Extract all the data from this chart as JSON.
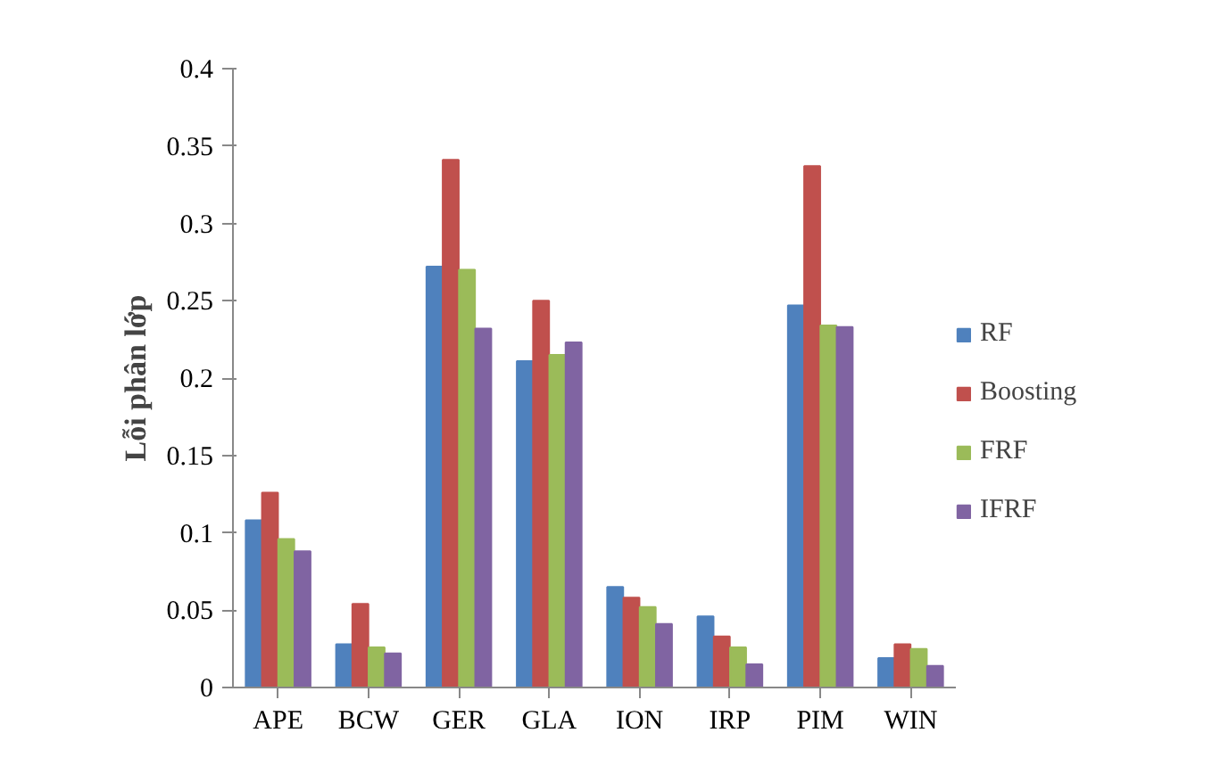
{
  "chart_data": {
    "type": "bar",
    "ylabel": "Lỗi phân lớp",
    "categories": [
      "APE",
      "BCW",
      "GER",
      "GLA",
      "ION",
      "IRP",
      "PIM",
      "WIN"
    ],
    "series": [
      {
        "name": "RF",
        "color": "#4f81bd",
        "values": [
          0.108,
          0.028,
          0.272,
          0.211,
          0.065,
          0.046,
          0.247,
          0.019
        ]
      },
      {
        "name": "Boosting",
        "color": "#c0504d",
        "values": [
          0.126,
          0.054,
          0.341,
          0.25,
          0.058,
          0.033,
          0.337,
          0.028
        ]
      },
      {
        "name": "FRF",
        "color": "#9bbb59",
        "values": [
          0.096,
          0.026,
          0.27,
          0.215,
          0.052,
          0.026,
          0.234,
          0.025
        ]
      },
      {
        "name": "IFRF",
        "color": "#8064a2",
        "values": [
          0.088,
          0.022,
          0.232,
          0.223,
          0.041,
          0.015,
          0.233,
          0.014
        ]
      }
    ],
    "ylim": [
      0,
      0.4
    ],
    "yticks": [
      0,
      0.05,
      0.1,
      0.15,
      0.2,
      0.25,
      0.3,
      0.35,
      0.4
    ],
    "grid": false,
    "legend": "right"
  }
}
